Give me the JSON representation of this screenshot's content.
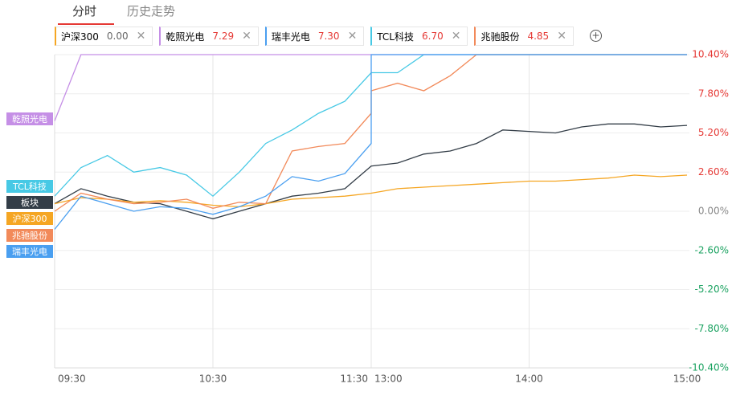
{
  "tabs": [
    "分时",
    "历史走势"
  ],
  "watchlist": [
    {
      "name": "沪深300",
      "price": "0.00",
      "color": "#f5a623"
    },
    {
      "name": "乾照光电",
      "price": "7.29",
      "color": "#c58fe6"
    },
    {
      "name": "瑞丰光电",
      "price": "7.30",
      "color": "#4a9ff0"
    },
    {
      "name": "TCL科技",
      "price": "6.70",
      "color": "#47c9e5"
    },
    {
      "name": "兆驰股份",
      "price": "4.85",
      "color": "#f28a5a"
    }
  ],
  "chart_data": {
    "type": "line",
    "categories": [
      "09:30",
      null,
      null,
      null,
      null,
      null,
      "10:30",
      null,
      null,
      null,
      null,
      null,
      "11:30",
      "13:00",
      null,
      null,
      null,
      null,
      null,
      "14:00",
      null,
      null,
      null,
      null,
      null,
      "15:00"
    ],
    "ylim": [
      -10.4,
      10.4
    ],
    "yticks": [
      {
        "value": 10.4,
        "label": "10.40%"
      },
      {
        "value": 7.8,
        "label": "7.80%"
      },
      {
        "value": 5.2,
        "label": "5.20%"
      },
      {
        "value": 2.6,
        "label": "2.60%"
      },
      {
        "value": 0,
        "label": "0.00%"
      },
      {
        "value": -2.6,
        "label": "-2.60%"
      },
      {
        "value": -5.2,
        "label": "-5.20%"
      },
      {
        "value": -7.8,
        "label": "-7.80%"
      },
      {
        "value": -10.4,
        "label": "-10.40%"
      }
    ],
    "grid": true,
    "series": [
      {
        "name": "乾照光电",
        "color": "#c58fe6",
        "values": [
          6.0,
          10.4,
          10.4,
          10.4,
          10.4,
          10.4,
          10.4,
          10.4,
          10.4,
          10.4,
          10.4,
          10.4,
          10.4,
          10.4,
          10.4,
          10.4,
          10.4,
          10.4,
          10.4,
          10.4,
          10.4,
          10.4,
          10.4,
          10.4,
          10.4,
          10.4
        ]
      },
      {
        "name": "TCL科技",
        "color": "#47c9e5",
        "values": [
          1.0,
          2.9,
          3.7,
          2.6,
          2.9,
          2.4,
          1.0,
          2.6,
          4.5,
          5.4,
          6.5,
          7.3,
          9.2,
          9.2,
          9.2,
          10.4,
          10.4,
          10.4,
          10.4,
          10.4,
          10.4,
          10.4,
          10.4,
          10.4,
          10.4,
          10.4
        ]
      },
      {
        "name": "板块",
        "color": "#333d47",
        "values": [
          0.5,
          1.5,
          1.0,
          0.6,
          0.5,
          0.0,
          -0.5,
          0.0,
          0.5,
          1.0,
          1.2,
          1.5,
          3.0,
          3.0,
          3.2,
          3.8,
          4.0,
          4.5,
          5.4,
          5.3,
          5.2,
          5.6,
          5.8,
          5.8,
          5.6,
          5.7
        ]
      },
      {
        "name": "沪深300",
        "color": "#f5a623",
        "values": [
          0.5,
          0.9,
          0.8,
          0.6,
          0.7,
          0.6,
          0.4,
          0.3,
          0.5,
          0.8,
          0.9,
          1.0,
          1.2,
          1.2,
          1.5,
          1.6,
          1.7,
          1.8,
          1.9,
          2.0,
          2.0,
          2.1,
          2.2,
          2.4,
          2.3,
          2.4
        ]
      },
      {
        "name": "兆驰股份",
        "color": "#f28a5a",
        "values": [
          0.0,
          1.2,
          0.8,
          0.5,
          0.6,
          0.8,
          0.2,
          0.6,
          0.5,
          4.0,
          4.3,
          4.5,
          6.5,
          8.0,
          8.5,
          8.0,
          9.0,
          10.4,
          10.4,
          10.4,
          10.4,
          10.4,
          10.4,
          10.4,
          10.4,
          10.4
        ]
      },
      {
        "name": "瑞丰光电",
        "color": "#4a9ff0",
        "values": [
          -1.2,
          1.0,
          0.5,
          0.0,
          0.3,
          0.2,
          -0.2,
          0.3,
          1.0,
          2.3,
          2.0,
          2.5,
          4.5,
          10.4,
          10.4,
          10.4,
          10.4,
          10.4,
          10.4,
          10.4,
          10.4,
          10.4,
          10.4,
          10.4,
          10.4,
          10.4
        ]
      }
    ]
  }
}
